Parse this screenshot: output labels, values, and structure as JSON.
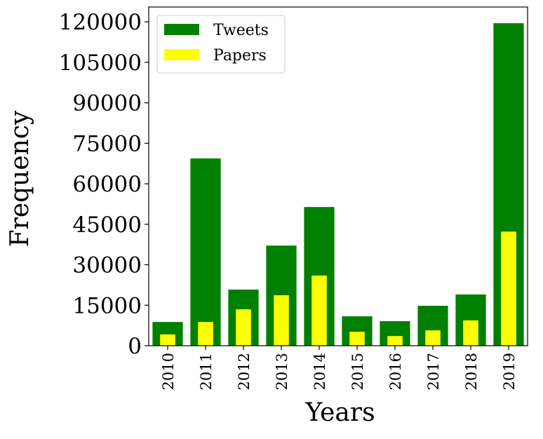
{
  "chart_data": {
    "type": "bar",
    "x_label": "Years",
    "y_label": "Frequency",
    "categories": [
      "2010",
      "2011",
      "2012",
      "2013",
      "2014",
      "2015",
      "2016",
      "2017",
      "2018",
      "2019"
    ],
    "series": [
      {
        "name": "Tweets",
        "color": "#008000",
        "values": [
          8800,
          69400,
          20800,
          37100,
          51400,
          10900,
          9100,
          14800,
          19000,
          119500
        ]
      },
      {
        "name": "Papers",
        "color": "#ffff00",
        "values": [
          4200,
          8800,
          13500,
          18700,
          26000,
          5200,
          3600,
          5700,
          9400,
          42300
        ]
      }
    ],
    "ylim": [
      0,
      125500
    ],
    "yticks": [
      0,
      15000,
      30000,
      45000,
      60000,
      75000,
      90000,
      105000,
      120000
    ],
    "legend": "upper left",
    "grid": false
  }
}
